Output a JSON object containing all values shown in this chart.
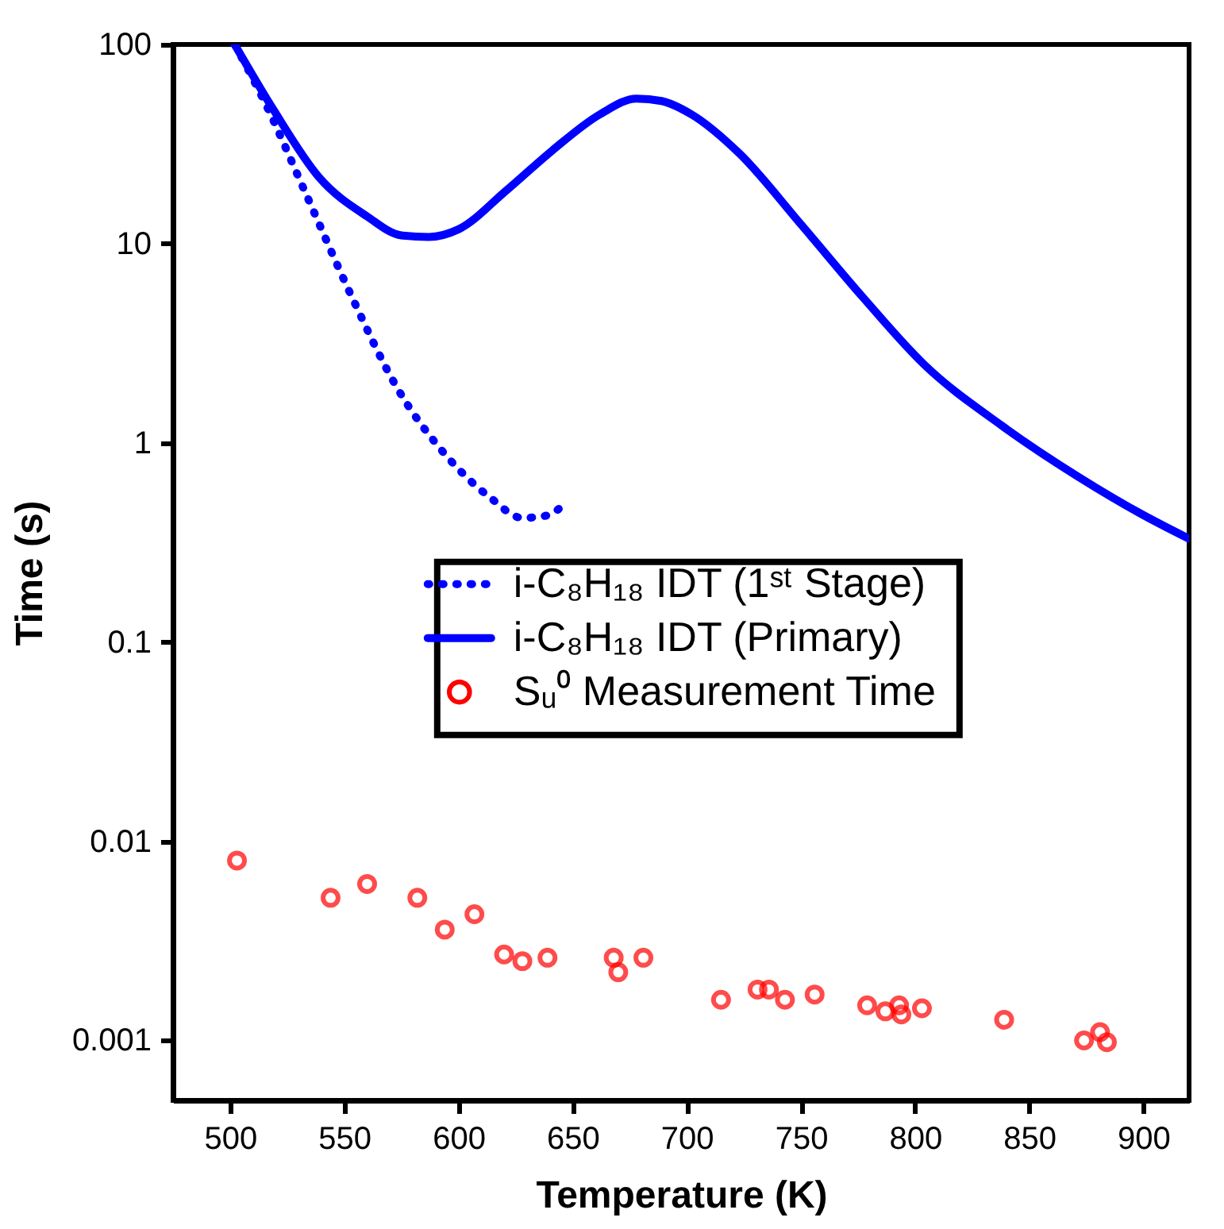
{
  "chart_data": {
    "type": "line",
    "xlabel": "Temperature (K)",
    "ylabel": "Time (s)",
    "log": "y",
    "xlim": [
      475,
      920
    ],
    "xticks": [
      500,
      550,
      600,
      650,
      700,
      750,
      800,
      850,
      900
    ],
    "ylim": [
      0.0005,
      100
    ],
    "yticks": [
      0.001,
      0.01,
      0.1,
      1,
      10,
      100
    ],
    "grid": false,
    "legend": "center",
    "series": [
      {
        "name": "i-C₈H₁₈ IDT (1ˢᵗ Stage)",
        "type": "line",
        "line_style": "dotted",
        "color": "#0000ff",
        "x": [
          502,
          516,
          533,
          553,
          573,
          594,
          614,
          628,
          638,
          648
        ],
        "values": [
          100,
          49,
          18,
          5.5,
          1.9,
          0.88,
          0.53,
          0.42,
          0.43,
          0.51
        ]
      },
      {
        "name": "i-C₈H₁₈ IDT (Primary)",
        "type": "line",
        "line_style": "solid",
        "color": "#0000ff",
        "x": [
          502,
          519,
          539,
          560,
          575,
          587,
          600,
          621,
          641,
          662,
          678,
          689,
          702,
          723,
          750,
          777,
          804,
          838,
          872,
          899,
          920
        ],
        "values": [
          100,
          47,
          21.5,
          13.7,
          11,
          10.8,
          11.8,
          18.5,
          29.3,
          44.6,
          53.5,
          52,
          44.6,
          28.4,
          12.5,
          5.4,
          2.47,
          1.22,
          0.67,
          0.44,
          0.33
        ]
      },
      {
        "name": "Sᵤ⁰ Measurement Time",
        "type": "scatter",
        "marker": "circle",
        "color": "#ff0000",
        "x": [
          503,
          544,
          560,
          582,
          594,
          607,
          620,
          628,
          639,
          668,
          670,
          681,
          715,
          731,
          736,
          743,
          756,
          779,
          787,
          793,
          794,
          803,
          839,
          874,
          881,
          884
        ],
        "values": [
          0.008,
          0.0052,
          0.0061,
          0.0052,
          0.0036,
          0.0043,
          0.0027,
          0.0025,
          0.0026,
          0.0026,
          0.0022,
          0.0026,
          0.0016,
          0.0018,
          0.0018,
          0.0016,
          0.0017,
          0.0015,
          0.0014,
          0.0015,
          0.00135,
          0.00145,
          0.00127,
          0.001,
          0.0011,
          0.00098
        ]
      }
    ]
  }
}
